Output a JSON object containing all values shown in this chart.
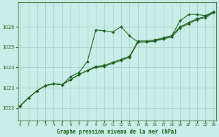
{
  "title": "Graphe pression niveau de la mer (hPa)",
  "bg_color": "#c8eee8",
  "grid_color": "#aacfc8",
  "line_color": "#1a5c1a",
  "x_ticks": [
    0,
    1,
    2,
    3,
    4,
    5,
    6,
    7,
    8,
    9,
    10,
    11,
    12,
    13,
    14,
    15,
    16,
    17,
    18,
    19,
    20,
    21,
    22,
    23
  ],
  "y_ticks": [
    1022,
    1023,
    1024,
    1025,
    1026
  ],
  "ylim": [
    1021.4,
    1027.2
  ],
  "xlim": [
    -0.3,
    23.3
  ],
  "series": [
    [
      1022.1,
      1022.5,
      1022.85,
      1023.1,
      1023.2,
      1023.15,
      1023.55,
      1023.75,
      1024.3,
      1025.85,
      1025.8,
      1025.75,
      1026.0,
      1025.55,
      1025.25,
      1025.25,
      1025.3,
      1025.45,
      1025.55,
      1026.3,
      1026.6,
      1026.6,
      1026.55,
      1026.75
    ],
    [
      1022.1,
      1022.5,
      1022.85,
      1023.1,
      1023.2,
      1023.15,
      1023.4,
      1023.65,
      1023.85,
      1024.0,
      1024.05,
      1024.2,
      1024.35,
      1024.5,
      1025.25,
      1025.25,
      1025.3,
      1025.4,
      1025.5,
      1025.95,
      1026.15,
      1026.35,
      1026.45,
      1026.7
    ],
    [
      1022.1,
      1022.5,
      1022.85,
      1023.1,
      1023.2,
      1023.15,
      1023.4,
      1023.65,
      1023.85,
      1024.05,
      1024.1,
      1024.25,
      1024.4,
      1024.55,
      1025.3,
      1025.3,
      1025.35,
      1025.45,
      1025.55,
      1026.0,
      1026.2,
      1026.4,
      1026.5,
      1026.75
    ]
  ]
}
